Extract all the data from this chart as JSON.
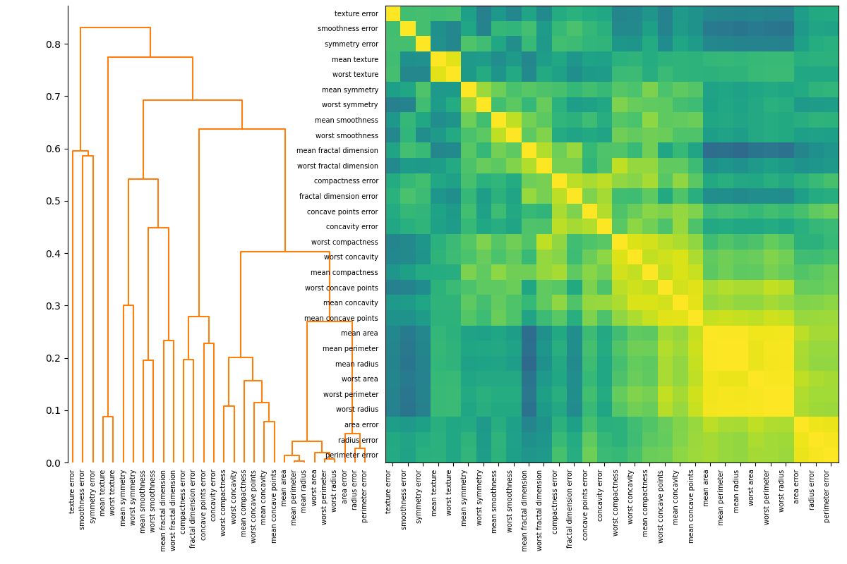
{
  "features_ordered": [
    "mean compactness",
    "worst compactness",
    "mean concavity",
    "worst concavity",
    "mean concave points",
    "worst concave points",
    "concave points error",
    "compactness error",
    "concavity error",
    "fractal dimension error",
    "mean fractal dimension",
    "worst fractal dimension",
    "mean smoothness",
    "worst smoothness",
    "mean symmetry",
    "worst symmetry",
    "texture error",
    "smoothness error",
    "symmetry error",
    "mean texture",
    "worst texture",
    "mean perimeter",
    "mean radius",
    "mean area",
    "worst perimeter",
    "worst radius",
    "worst area",
    "area error",
    "radius error",
    "perimeter error"
  ],
  "colormap": "viridis",
  "cluster_threshold": 1.41,
  "cluster_colors": {
    "above": "#1f77b4",
    "orange": "#ff7f0e",
    "green": "#2ca02c",
    "red": "#d62728"
  },
  "color_threshold_link": 1.41,
  "vmin": -1,
  "vmax": 1,
  "leaf_font_size": 7.0,
  "heat_font_size": 7.0
}
